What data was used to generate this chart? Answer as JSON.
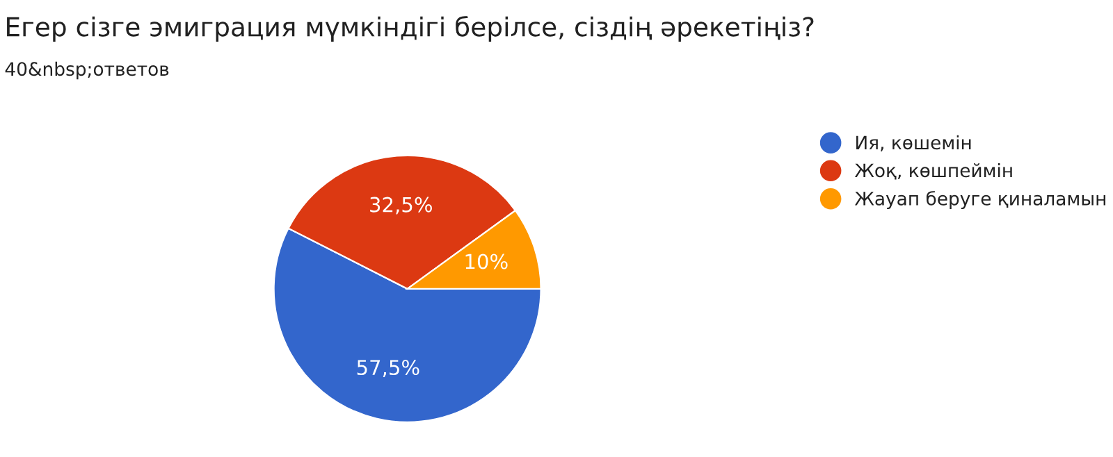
{
  "chart_data": {
    "type": "pie",
    "title": "Егер сізге эмиграция мүмкіндігі берілсе, сіздің әрекетіңіз?",
    "subtitle": "40&nbsp;ответов",
    "categories": [
      "Ия, көшемін",
      "Жоқ, көшпеймін",
      "Жауап беруге қиналамын"
    ],
    "values": [
      57.5,
      32.5,
      10
    ],
    "colors": [
      "#3366cc",
      "#dc3912",
      "#ff9900"
    ],
    "value_labels": [
      "57,5%",
      "32,5%",
      "10%"
    ],
    "legend": "right"
  }
}
